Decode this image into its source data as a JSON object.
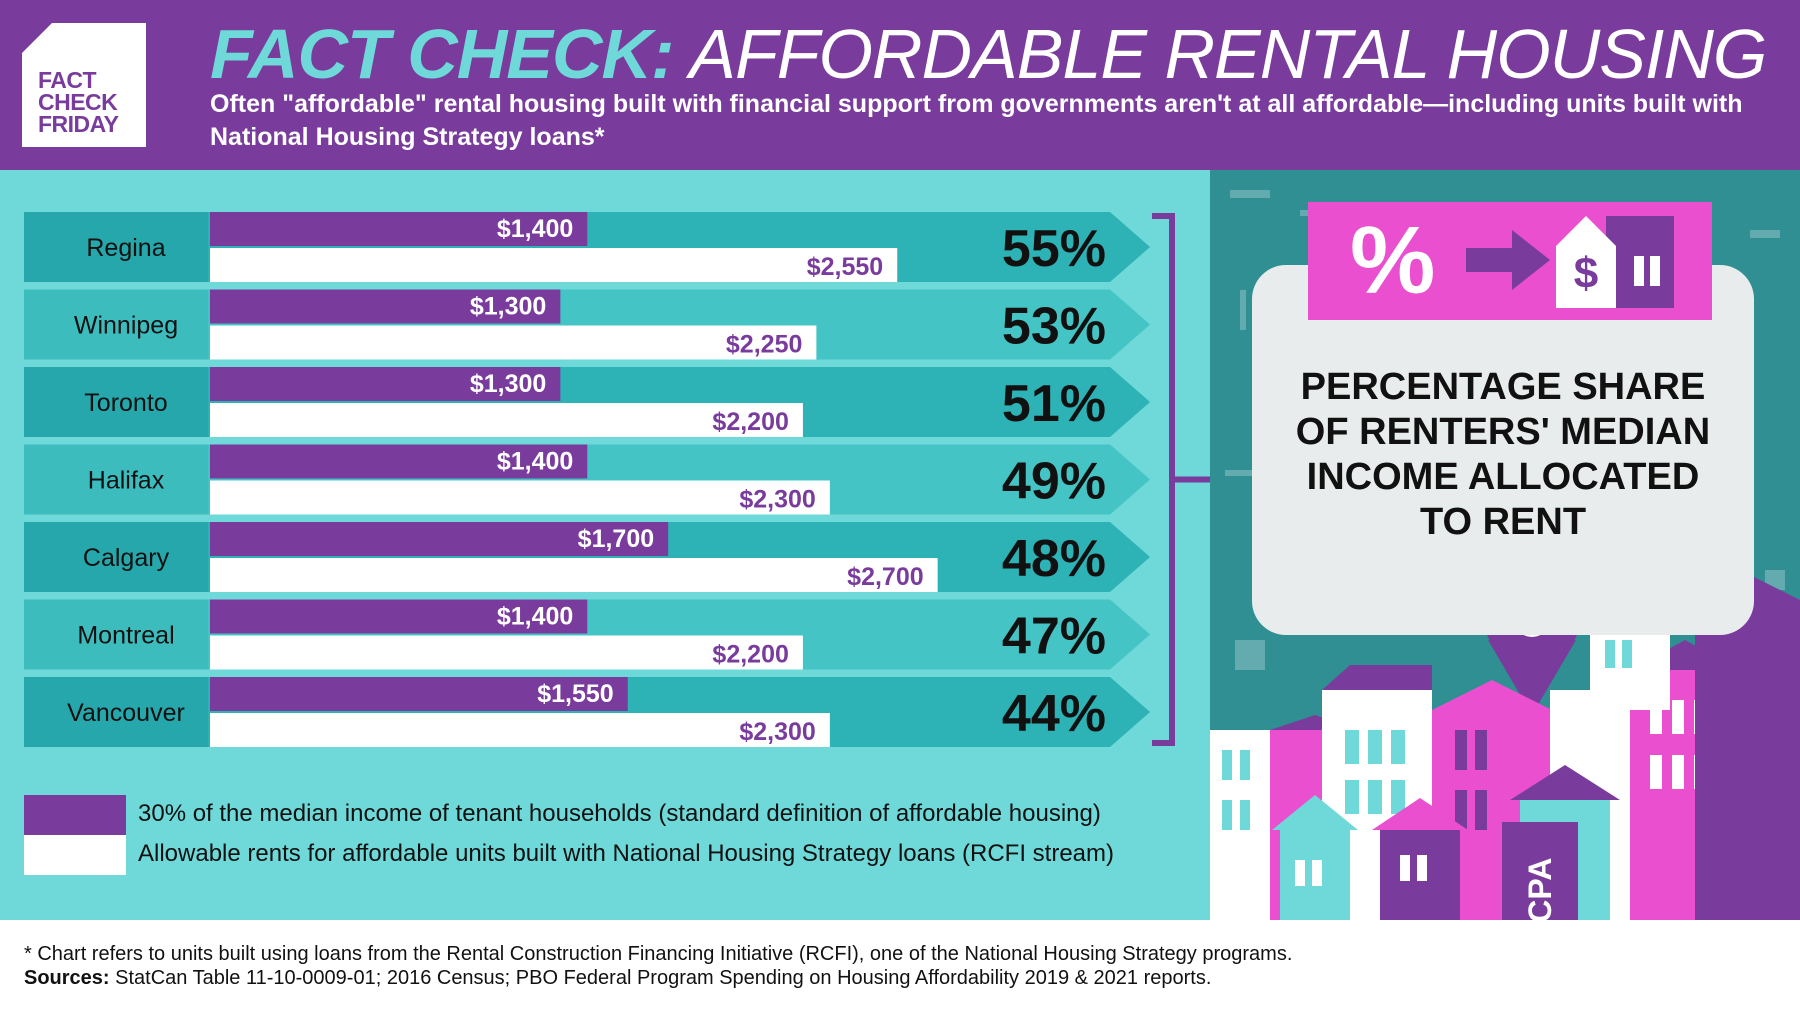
{
  "badge": {
    "lines": [
      "FACT",
      "CHECK",
      "FRIDAY"
    ]
  },
  "header": {
    "title_prefix": "FACT CHECK:",
    "title_main": "AFFORDABLE RENTAL HOUSING",
    "subtitle": "Often \"affordable\" rental housing built with financial support from governments aren't at all affordable—including units built with National Housing Strategy loans*"
  },
  "chart_data": {
    "type": "bar",
    "categories": [
      "Regina",
      "Winnipeg",
      "Toronto",
      "Halifax",
      "Calgary",
      "Montreal",
      "Vancouver"
    ],
    "series": [
      {
        "name": "30% of the median income of tenant households (standard definition of affordable housing)",
        "values": [
          1400,
          1300,
          1300,
          1400,
          1700,
          1400,
          1550
        ],
        "labels": [
          "$1,400",
          "$1,300",
          "$1,300",
          "$1,400",
          "$1,700",
          "$1,400",
          "$1,550"
        ]
      },
      {
        "name": "Allowable rents for affordable units built with National Housing Strategy loans (RCFI stream)",
        "values": [
          2550,
          2250,
          2200,
          2300,
          2700,
          2200,
          2300
        ],
        "labels": [
          "$2,550",
          "$2,250",
          "$2,200",
          "$2,300",
          "$2,700",
          "$2,200",
          "$2,300"
        ]
      }
    ],
    "percentages": [
      "55%",
      "53%",
      "51%",
      "49%",
      "48%",
      "47%",
      "44%"
    ],
    "percentage_caption": "PERCENTAGE SHARE OF RENTERS' MEDIAN INCOME ALLOCATED TO RENT",
    "orientation": "horizontal",
    "legend_placement": "bottom-left",
    "colors": {
      "series1": "#7a3c9c",
      "series2": "#ffffff",
      "row_dark": "#2db2b5",
      "row_light": "#44c4c4",
      "label_cell_dark": "#26a7ab",
      "label_cell_light": "#3dbcbe"
    }
  },
  "panel": {
    "callout_text": "PERCENTAGE SHARE OF RENTERS' MEDIAN INCOME ALLOCATED TO RENT",
    "pct_symbol": "%",
    "icon": "percent-to-house-rent-icon"
  },
  "handle": "@CCPA",
  "footer": {
    "footnote": "* Chart refers to units built using loans from the Rental Construction Financing Initiative (RCFI), one of the National Housing Strategy programs.",
    "sources_label": "Sources:",
    "sources_text": " StatCan Table 11-10-0009-01; 2016 Census; PBO Federal Program Spending on Housing Affordability 2019 & 2021 reports."
  }
}
